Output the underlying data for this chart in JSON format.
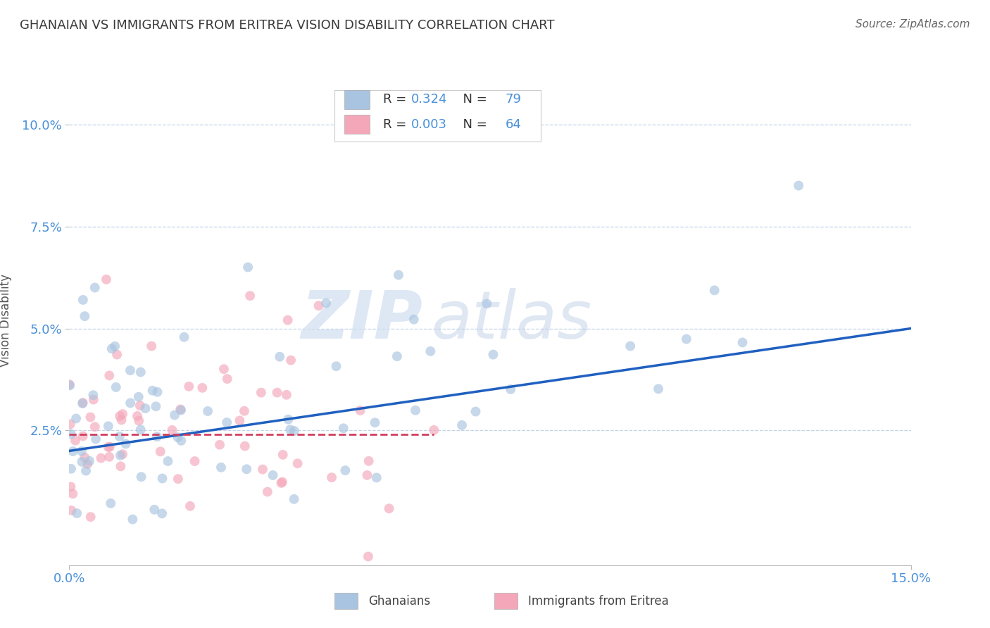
{
  "title": "GHANAIAN VS IMMIGRANTS FROM ERITREA VISION DISABILITY CORRELATION CHART",
  "source": "Source: ZipAtlas.com",
  "ylabel": "Vision Disability",
  "xlim": [
    0.0,
    0.15
  ],
  "ylim": [
    -0.008,
    0.112
  ],
  "xticks": [
    0.0,
    0.15
  ],
  "xtick_labels": [
    "0.0%",
    "15.0%"
  ],
  "yticks": [
    0.025,
    0.05,
    0.075,
    0.1
  ],
  "ytick_labels": [
    "2.5%",
    "5.0%",
    "7.5%",
    "10.0%"
  ],
  "ghanaian_color": "#a8c4e0",
  "eritrea_color": "#f4a7b9",
  "trend_blue": "#2060c0",
  "trend_pink": "#d04060",
  "watermark_zip": "ZIP",
  "watermark_atlas": "atlas",
  "legend_label_ghana": "Ghanaians",
  "legend_label_eritrea": "Immigrants from Eritrea",
  "title_color": "#3a3a3a",
  "axis_color": "#4a90d9",
  "ghana_R": 0.324,
  "eritrea_R": 0.003,
  "ghana_N": 79,
  "eritrea_N": 64,
  "ghana_trend_x": [
    0.0,
    0.15
  ],
  "ghana_trend_y": [
    0.02,
    0.05
  ],
  "eritrea_trend_x": [
    0.0,
    0.065
  ],
  "eritrea_trend_y": [
    0.024,
    0.024
  ],
  "background_color": "#ffffff",
  "grid_color": "#c0d4e8",
  "scatter_size": 100,
  "scatter_alpha": 0.65
}
